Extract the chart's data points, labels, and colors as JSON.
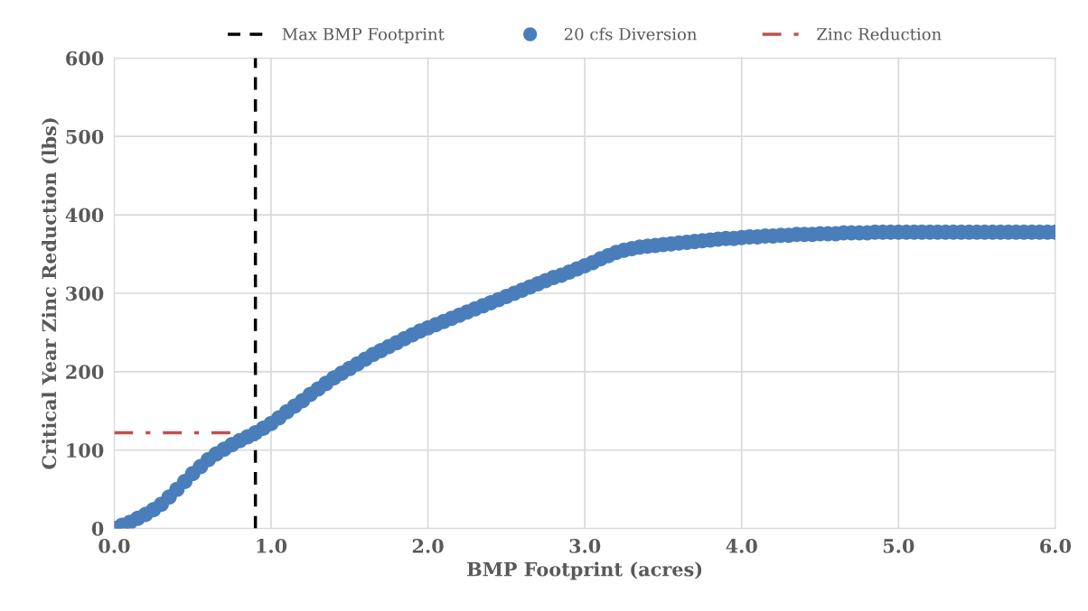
{
  "chart_data": {
    "type": "scatter",
    "xlabel": "BMP Footprint (acres)",
    "ylabel": "Critical Year Zinc Reduction (lbs)",
    "xlim": [
      0,
      6
    ],
    "xticks": [
      {
        "value": 0,
        "label": "0.0"
      },
      {
        "value": 1,
        "label": "1.0"
      },
      {
        "value": 2,
        "label": "2.0"
      },
      {
        "value": 3,
        "label": "3.0"
      },
      {
        "value": 4,
        "label": "4.0"
      },
      {
        "value": 5,
        "label": "5.0"
      },
      {
        "value": 6,
        "label": "6.0"
      }
    ],
    "ylim": [
      0,
      600
    ],
    "yticks": [
      0,
      100,
      200,
      300,
      400,
      500,
      600
    ],
    "grid": true,
    "legend": "top",
    "ref_lines": [
      {
        "axis": "x",
        "value": 0.9,
        "label": "Max BMP Footprint",
        "color": "#000000",
        "line_style": "dashed"
      }
    ],
    "series": [
      {
        "name": "20 cfs Diversion",
        "color": "#4a7ebb",
        "marker": "circle",
        "x": [
          0,
          0.05,
          0.1,
          0.15,
          0.2,
          0.25,
          0.3,
          0.35,
          0.4,
          0.45,
          0.5,
          0.55,
          0.6,
          0.65,
          0.7,
          0.75,
          0.8,
          0.85,
          0.9,
          0.95,
          1.0,
          1.05,
          1.1,
          1.15,
          1.2,
          1.25,
          1.3,
          1.35,
          1.4,
          1.45,
          1.5,
          1.55,
          1.6,
          1.65,
          1.7,
          1.75,
          1.8,
          1.85,
          1.9,
          1.95,
          2.0,
          2.05,
          2.1,
          2.15,
          2.2,
          2.25,
          2.3,
          2.35,
          2.4,
          2.45,
          2.5,
          2.55,
          2.6,
          2.65,
          2.7,
          2.75,
          2.8,
          2.85,
          2.9,
          2.95,
          3.0,
          3.05,
          3.1,
          3.15,
          3.2,
          3.25,
          3.3,
          3.35,
          3.4,
          3.45,
          3.5,
          3.55,
          3.6,
          3.65,
          3.7,
          3.75,
          3.8,
          3.85,
          3.9,
          3.95,
          4.0,
          4.05,
          4.1,
          4.15,
          4.2,
          4.25,
          4.3,
          4.35,
          4.4,
          4.45,
          4.5,
          4.55,
          4.6,
          4.65,
          4.7,
          4.75,
          4.8,
          4.85,
          4.9,
          4.95,
          5.0,
          5.05,
          5.1,
          5.15,
          5.2,
          5.25,
          5.3,
          5.35,
          5.4,
          5.45,
          5.5,
          5.55,
          5.6,
          5.65,
          5.7,
          5.75,
          5.8,
          5.85,
          5.9,
          5.95,
          6.0
        ],
        "values": [
          0,
          4,
          8,
          13,
          18,
          24,
          31,
          40,
          50,
          60,
          70,
          79,
          88,
          95,
          101,
          107,
          112,
          117,
          122,
          128,
          134,
          141,
          149,
          156,
          163,
          171,
          178,
          185,
          192,
          198,
          204,
          210,
          216,
          222,
          227,
          232,
          237,
          242,
          247,
          252,
          256,
          260,
          264,
          268,
          272,
          276,
          280,
          284,
          288,
          292,
          296,
          300,
          304,
          308,
          312,
          316,
          320,
          323,
          327,
          331,
          335,
          339,
          344,
          348,
          352,
          355,
          357,
          359,
          360,
          361,
          362,
          363,
          364,
          365,
          366,
          367,
          368,
          369,
          370,
          370,
          371,
          372,
          372,
          373,
          373,
          374,
          374,
          375,
          375,
          375,
          376,
          376,
          376,
          377,
          377,
          377,
          377,
          378,
          378,
          378,
          378,
          378,
          378,
          378,
          378,
          378,
          378,
          378,
          378,
          378,
          378,
          378,
          378,
          378,
          378,
          378,
          378,
          378,
          378,
          378,
          378
        ]
      },
      {
        "name": "Zinc Reduction",
        "type": "line",
        "color": "#c0504d",
        "line_style": "dashdot",
        "marker": "none",
        "x": [
          0,
          0.9
        ],
        "values": [
          122,
          122
        ]
      }
    ]
  }
}
